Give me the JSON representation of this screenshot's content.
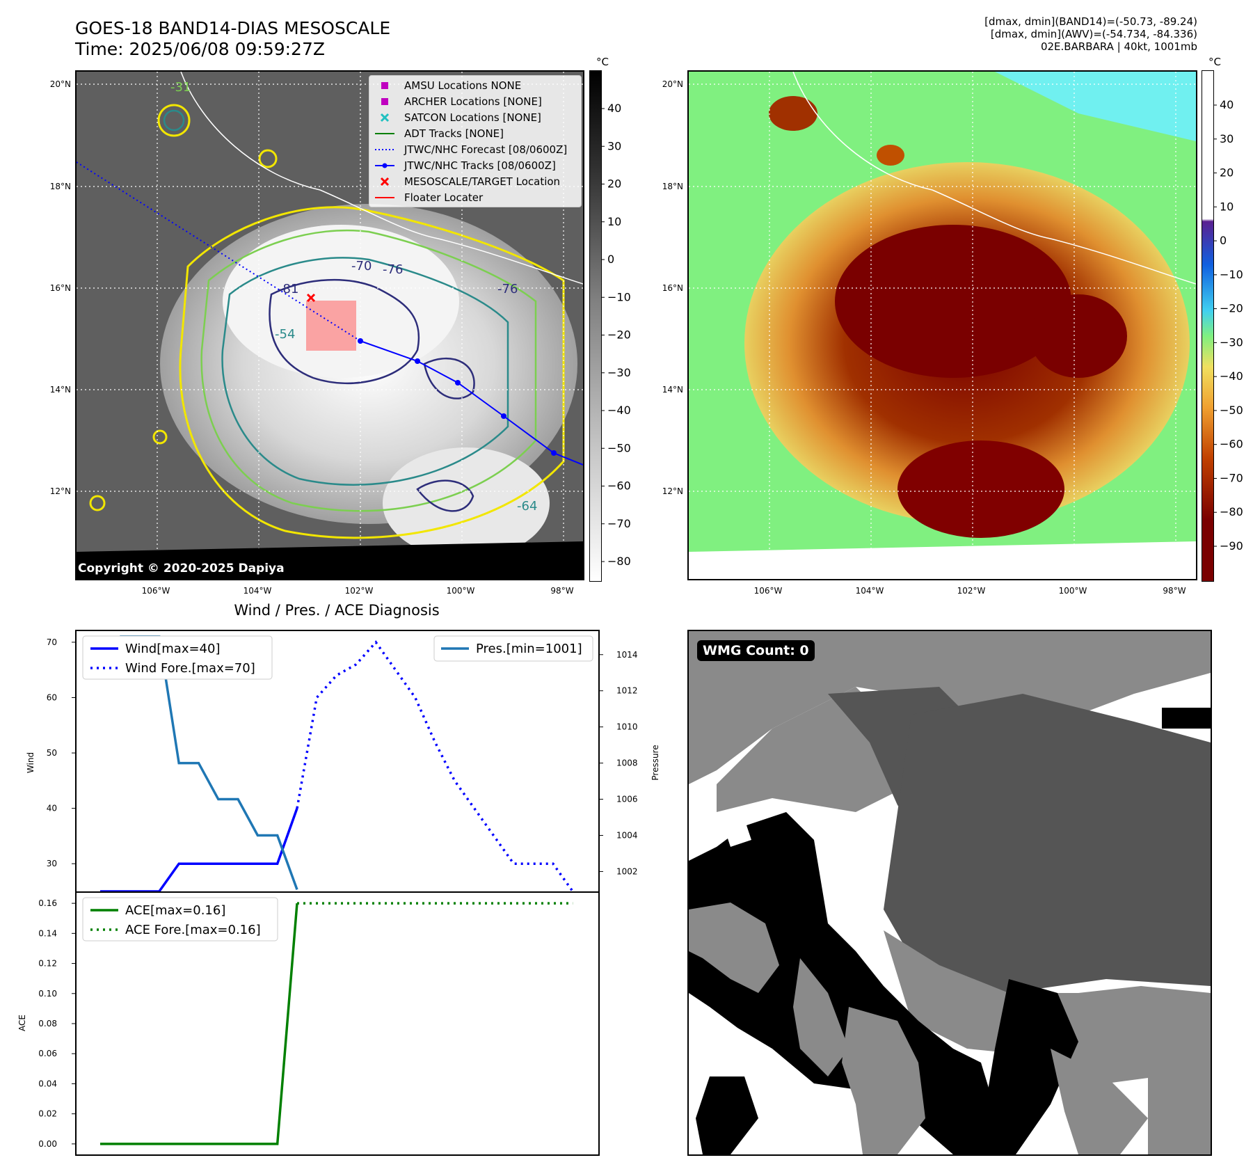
{
  "header": {
    "title_line1": "GOES-18 BAND14-DIAS MESOSCALE",
    "title_line2": "Time: 2025/06/08 09:59:27Z",
    "right_line1": "[dmax, dmin](BAND14)=(-50.73, -89.24)",
    "right_line2": "[dmax, dmin](AWV)=(-54.734, -84.336)",
    "right_line3": "02E.BARBARA | 40kt, 1001mb"
  },
  "map": {
    "lat_labels": [
      "20°N",
      "18°N",
      "16°N",
      "14°N",
      "12°N"
    ],
    "lon_labels": [
      "106°W",
      "104°W",
      "102°W",
      "100°W",
      "98°W"
    ],
    "copyright": "Copyright © 2020-2025 Dapiya",
    "contour_labels": [
      "-70",
      "-76",
      "-81",
      "-76",
      "-54",
      "-31",
      "-64"
    ]
  },
  "legend": {
    "items": [
      {
        "label": "AMSU Locations NONE",
        "color": "#c000c0",
        "marker": "square"
      },
      {
        "label": "ARCHER Locations [NONE]",
        "color": "#c000c0",
        "marker": "square"
      },
      {
        "label": "SATCON Locations [NONE]",
        "color": "#20c0c0",
        "marker": "x"
      },
      {
        "label": "ADT Tracks [NONE]",
        "color": "#007f00",
        "marker": "line"
      },
      {
        "label": "JTWC/NHC Forecast [08/0600Z]",
        "color": "#0000ff",
        "marker": "dotted"
      },
      {
        "label": "JTWC/NHC Tracks [08/0600Z]",
        "color": "#0000ff",
        "marker": "line-dot"
      },
      {
        "label": "MESOSCALE/TARGET Location",
        "color": "#ff0000",
        "marker": "x"
      },
      {
        "label": "Floater Locater",
        "color": "#ff0000",
        "marker": "line"
      }
    ]
  },
  "colorbar_gray": {
    "unit": "°C",
    "ticks": [
      "40",
      "30",
      "20",
      "10",
      "0",
      "−10",
      "−20",
      "−30",
      "−40",
      "−50",
      "−60",
      "−70",
      "−80"
    ]
  },
  "colorbar_color": {
    "unit": "°C",
    "ticks": [
      "40",
      "30",
      "20",
      "10",
      "0",
      "−10",
      "−20",
      "−30",
      "−40",
      "−50",
      "−60",
      "−70",
      "−80",
      "−90"
    ]
  },
  "diag": {
    "title": "Wind / Pres. / ACE Diagnosis",
    "wind_ylabel": "Wind",
    "pres_ylabel": "Pressure",
    "ace_ylabel": "ACE",
    "wind_ticks": [
      "70",
      "60",
      "50",
      "40",
      "30"
    ],
    "pres_ticks": [
      "1014",
      "1012",
      "1010",
      "1008",
      "1006",
      "1004",
      "1002"
    ],
    "ace_ticks": [
      "0.16",
      "0.14",
      "0.12",
      "0.10",
      "0.08",
      "0.06",
      "0.04",
      "0.02",
      "0.00"
    ],
    "legend_wind": "Wind[max=40]",
    "legend_wind_fore": "Wind Fore.[max=70]",
    "legend_pres": "Pres.[min=1001]",
    "legend_ace": "ACE[max=0.16]",
    "legend_ace_fore": "ACE Fore.[max=0.16]",
    "colors": {
      "wind": "#0000ff",
      "pres": "#1f77b4",
      "ace": "#008000"
    }
  },
  "wmg": {
    "badge": "WMG Count: 0"
  },
  "chart_data": [
    {
      "type": "line",
      "title": "Wind / Pres. / ACE Diagnosis",
      "ylabel": "Wind",
      "ylim": [
        25,
        72
      ],
      "series": [
        {
          "name": "Wind[max=40]",
          "x": [
            0,
            3,
            4,
            5,
            6,
            7,
            8,
            9,
            10
          ],
          "values": [
            25,
            25,
            30,
            30,
            30,
            30,
            30,
            30,
            40
          ],
          "style": "solid"
        },
        {
          "name": "Wind Fore.[max=70]",
          "x": [
            10,
            11,
            12,
            13,
            14,
            15,
            16,
            17,
            18,
            19,
            20,
            21,
            22,
            23,
            24
          ],
          "values": [
            40,
            60,
            64,
            66,
            70,
            65,
            60,
            52,
            45,
            40,
            35,
            30,
            30,
            30,
            25
          ],
          "style": "dotted"
        }
      ]
    },
    {
      "type": "line",
      "ylabel": "Pressure",
      "ylim": [
        1000.9,
        1015.3
      ],
      "series": [
        {
          "name": "Pres.[min=1001]",
          "x": [
            1,
            3,
            4,
            5,
            6,
            7,
            8,
            9,
            10
          ],
          "values": [
            1015,
            1015,
            1008,
            1008,
            1006,
            1006,
            1004,
            1004,
            1001
          ],
          "style": "solid"
        }
      ]
    },
    {
      "type": "line",
      "ylabel": "ACE",
      "ylim": [
        -0.007,
        0.167
      ],
      "series": [
        {
          "name": "ACE[max=0.16]",
          "x": [
            0,
            9,
            10
          ],
          "values": [
            0.0,
            0.0,
            0.16
          ],
          "style": "solid"
        },
        {
          "name": "ACE Fore.[max=0.16]",
          "x": [
            10,
            24
          ],
          "values": [
            0.16,
            0.16
          ],
          "style": "dotted"
        }
      ]
    }
  ]
}
